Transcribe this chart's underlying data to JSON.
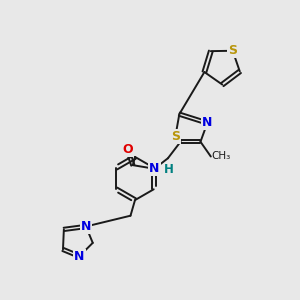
{
  "background_color": "#e8e8e8",
  "bond_color": "#1a1a1a",
  "bond_width": 1.4,
  "atom_colors": {
    "S": "#b8960c",
    "N": "#0000e0",
    "O": "#e00000",
    "H": "#008080",
    "C": "#1a1a1a"
  },
  "font_size": 8.5
}
